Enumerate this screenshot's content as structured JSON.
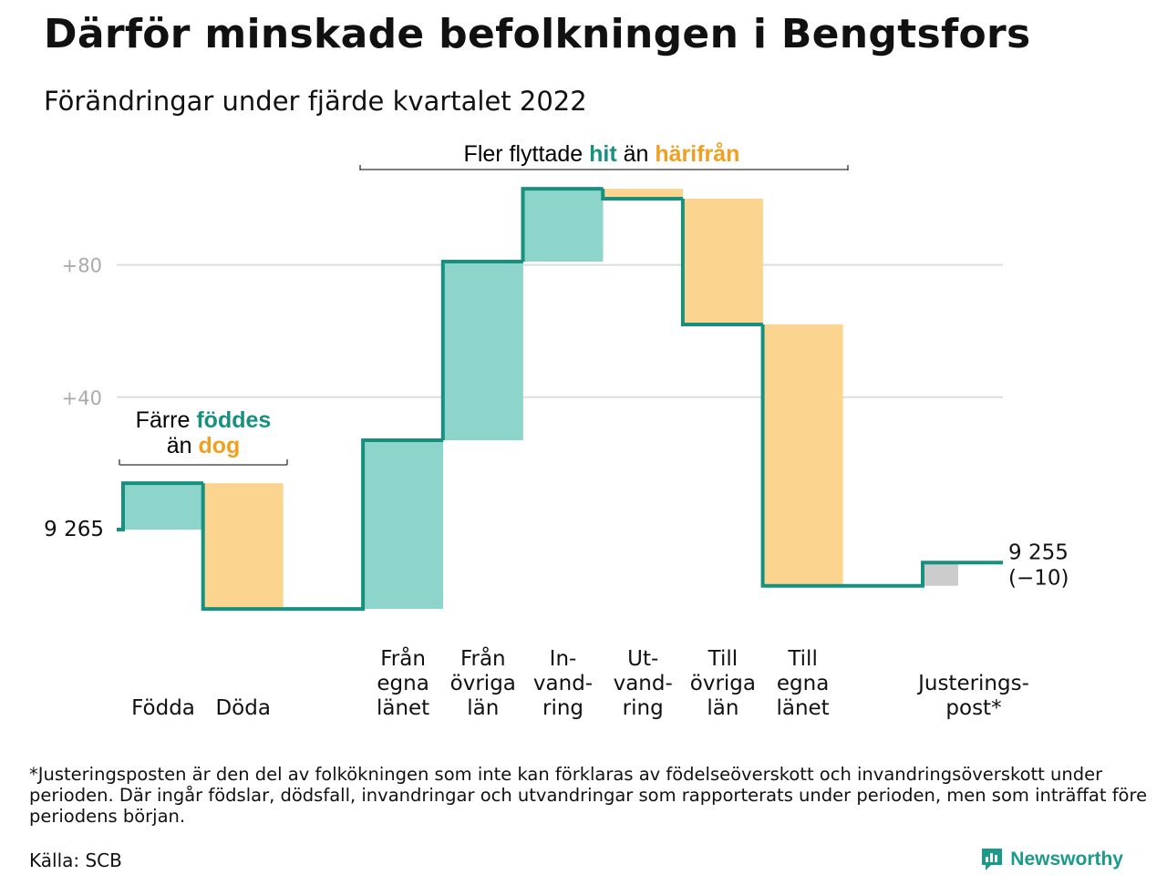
{
  "title": "Därför minskade befolkningen i Bengtsfors",
  "subtitle": "Förändringar under fjärde kvartalet 2022",
  "colors": {
    "increase_fill": "#8dd5cb",
    "decrease_fill": "#fbd58f",
    "adjustment_fill": "#cccccc",
    "step_line": "#17917f",
    "highlight_teal": "#17917f",
    "highlight_orange": "#f0a020",
    "gridline": "#dddddd",
    "tick_text": "#aaaaaa"
  },
  "chart_data": {
    "type": "waterfall",
    "start": {
      "label": "9 265",
      "value": 0
    },
    "end": {
      "label": "9 255",
      "change": "(−10)",
      "value": -10
    },
    "categories": [
      {
        "key": "fodda",
        "label": [
          "Födda"
        ],
        "value": 14,
        "kind": "increase"
      },
      {
        "key": "doda",
        "label": [
          "Döda"
        ],
        "value": -38,
        "kind": "decrease"
      },
      {
        "key": "fran_egna",
        "label": [
          "Från",
          "egna",
          "länet"
        ],
        "value": 51,
        "kind": "increase"
      },
      {
        "key": "fran_ovriga",
        "label": [
          "Från",
          "övriga",
          "län"
        ],
        "value": 54,
        "kind": "increase"
      },
      {
        "key": "invandring",
        "label": [
          "In-",
          "vand-",
          "ring"
        ],
        "value": 22,
        "kind": "increase"
      },
      {
        "key": "utvandring",
        "label": [
          "Ut-",
          "vand-",
          "ring"
        ],
        "value": -3,
        "kind": "decrease"
      },
      {
        "key": "till_ovriga",
        "label": [
          "Till",
          "övriga",
          "län"
        ],
        "value": -38,
        "kind": "decrease"
      },
      {
        "key": "till_egna",
        "label": [
          "Till",
          "egna",
          "länet"
        ],
        "value": -79,
        "kind": "decrease"
      },
      {
        "key": "justering",
        "label": [
          "Justerings-",
          "post*"
        ],
        "value": 7,
        "kind": "adjustment"
      }
    ],
    "y_ticks": [
      {
        "value": 40,
        "label": "+40"
      },
      {
        "value": 80,
        "label": "+80"
      }
    ],
    "ylim": [
      -27,
      103
    ],
    "grid": true,
    "annotations": {
      "births_deaths": {
        "line1": "Färre ",
        "line1_highlight": "föddes",
        "line2": "än ",
        "line2_highlight": "dog"
      },
      "migration": {
        "part1": "Fler flyttade ",
        "highlight1": "hit",
        "part2": " än ",
        "highlight2": "härifrån"
      }
    }
  },
  "footnote": "*Justeringsposten är den del av folkökningen som inte kan förklaras av födelseöverskott och invandringsöverskott under perioden. Där ingår födslar, dödsfall, invandringar och utvandringar som rapporterats under perioden, men som inträffat före periodens början.",
  "source": "Källa: SCB",
  "brand": {
    "name": "Newsworthy",
    "icon": "newsworthy-logo-icon"
  }
}
